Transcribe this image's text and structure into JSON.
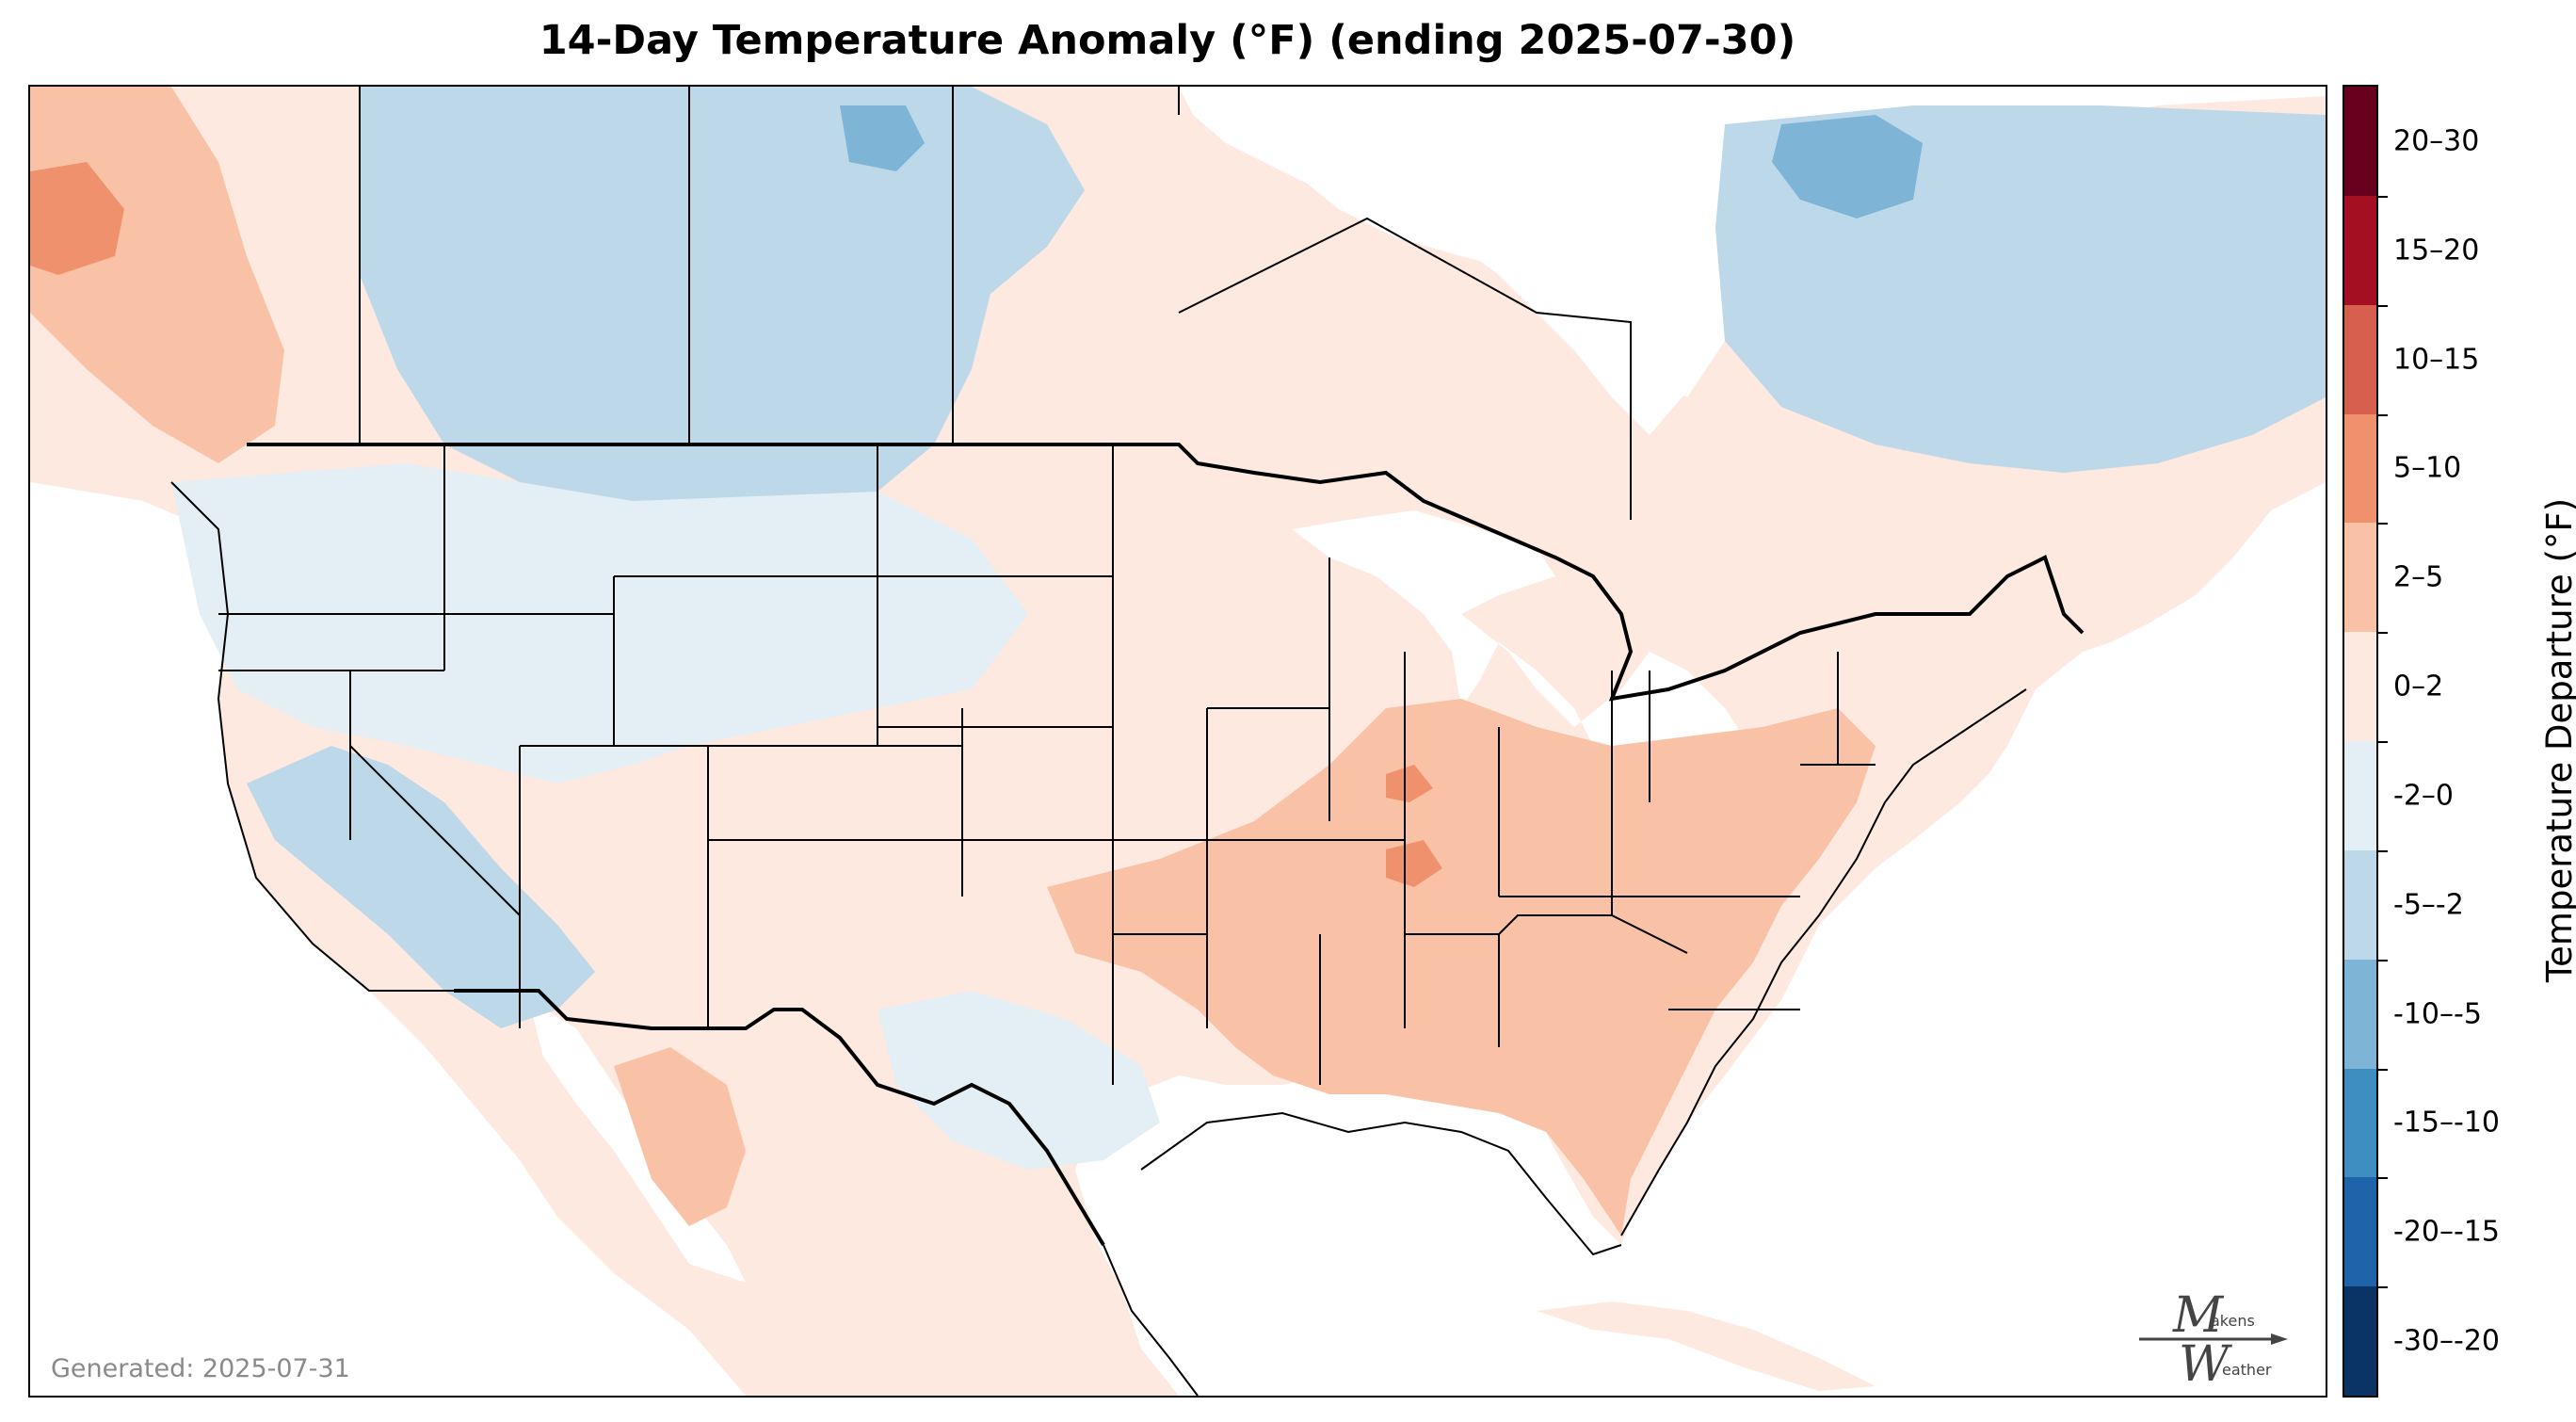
{
  "title": "14-Day Temperature Anomaly (°F) (ending 2025-07-30)",
  "generated": "Generated: 2025-07-31",
  "logo": {
    "top_letter": "M",
    "top_text": "akens",
    "bottom_letter": "W",
    "bottom_text": "eather"
  },
  "colorbar": {
    "title": "Temperature Departure (°F)",
    "bins": [
      {
        "label": "20–30",
        "color": "#67001f"
      },
      {
        "label": "15–20",
        "color": "#a50f22"
      },
      {
        "label": "10–15",
        "color": "#d6604d"
      },
      {
        "label": "5–10",
        "color": "#f0916e"
      },
      {
        "label": "2–5",
        "color": "#f9c2a6"
      },
      {
        "label": "0–2",
        "color": "#fde9df"
      },
      {
        "label": "-2–0",
        "color": "#e3eef5"
      },
      {
        "label": "-5–-2",
        "color": "#bcd8e9"
      },
      {
        "label": "-10–-5",
        "color": "#7eb4d6"
      },
      {
        "label": "-15–-10",
        "color": "#3f8ec2"
      },
      {
        "label": "-20–-15",
        "color": "#1f64ab"
      },
      {
        "label": "-30–-20",
        "color": "#0a3366"
      }
    ]
  },
  "map": {
    "land_default_color": "#fde9df",
    "ocean_color": "#ffffff",
    "boundary_color": "#000000"
  }
}
